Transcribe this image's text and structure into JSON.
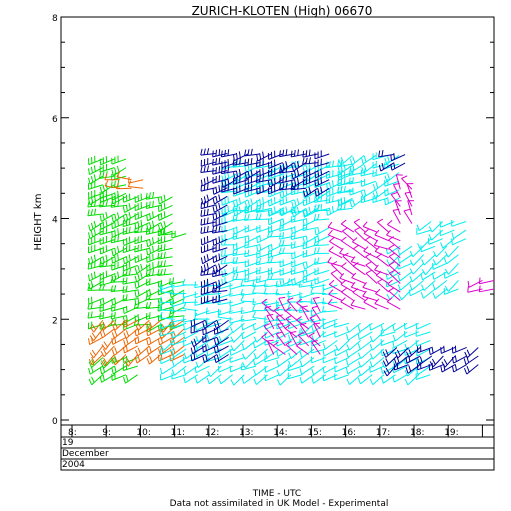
{
  "chart_data": {
    "type": "wind-profile",
    "title": "ZURICH-KLOTEN (High) 06670",
    "ylabel": "HEIGHT km",
    "xlabel": "TIME - UTC",
    "footnote": "Data not assimilated in UK Model - Experimental",
    "ylim": [
      0,
      8
    ],
    "yticks": [
      "0",
      "2",
      "4",
      "6",
      "8"
    ],
    "xlim": [
      7.6,
      20.5
    ],
    "xticks": [
      "8:",
      "9:",
      "10:",
      "11:",
      "12:",
      "13:",
      "14:",
      "15:",
      "16:",
      "17:",
      "18:",
      "19:"
    ],
    "date": {
      "day": "19",
      "month": "December",
      "year": "2004"
    },
    "colors": {
      "green": "#00dd00",
      "orange": "#ee6600",
      "cyan": "#00eeee",
      "navy": "#000099",
      "magenta": "#dd00cc"
    },
    "blocks": [
      {
        "color": "green",
        "t_start": 8.9,
        "t_end": 9.7,
        "h_start": 4.5,
        "h_end": 5.3,
        "dir": 250,
        "barbs": 3
      },
      {
        "color": "green",
        "t_start": 8.9,
        "t_end": 11.2,
        "h_start": 2.9,
        "h_end": 4.5,
        "dir": 250,
        "barbs": 3
      },
      {
        "color": "green",
        "t_start": 8.9,
        "t_end": 11.6,
        "h_start": 1.9,
        "h_end": 2.8,
        "dir": 255,
        "barbs": 2
      },
      {
        "color": "green",
        "t_start": 8.9,
        "t_end": 10.2,
        "h_start": 0.9,
        "h_end": 1.4,
        "dir": 240,
        "barbs": 2
      },
      {
        "color": "green",
        "t_start": 11.0,
        "t_end": 11.4,
        "h_start": 3.7,
        "h_end": 3.8,
        "dir": 260,
        "barbs": 2
      },
      {
        "color": "orange",
        "t_start": 8.9,
        "t_end": 11.3,
        "h_start": 1.3,
        "h_end": 2.0,
        "dir": 230,
        "barbs": 2
      },
      {
        "color": "orange",
        "t_start": 9.4,
        "t_end": 10.3,
        "h_start": 4.6,
        "h_end": 4.9,
        "dir": 270,
        "barbs": 1
      },
      {
        "color": "cyan",
        "t_start": 12.8,
        "t_end": 16.2,
        "h_start": 4.2,
        "h_end": 5.2,
        "dir": 250,
        "barbs": 3
      },
      {
        "color": "cyan",
        "t_start": 12.8,
        "t_end": 15.8,
        "h_start": 2.8,
        "h_end": 4.2,
        "dir": 255,
        "barbs": 2
      },
      {
        "color": "cyan",
        "t_start": 11.0,
        "t_end": 15.8,
        "h_start": 2.0,
        "h_end": 2.8,
        "dir": 265,
        "barbs": 1
      },
      {
        "color": "cyan",
        "t_start": 11.0,
        "t_end": 18.5,
        "h_start": 0.9,
        "h_end": 2.0,
        "dir": 240,
        "barbs": 1
      },
      {
        "color": "cyan",
        "t_start": 16.2,
        "t_end": 17.8,
        "h_start": 4.4,
        "h_end": 5.3,
        "dir": 245,
        "barbs": 2
      },
      {
        "color": "cyan",
        "t_start": 17.6,
        "t_end": 19.6,
        "h_start": 2.6,
        "h_end": 3.6,
        "dir": 235,
        "barbs": 1
      },
      {
        "color": "navy",
        "t_start": 12.2,
        "t_end": 12.6,
        "h_start": 2.4,
        "h_end": 5.3,
        "dir": 250,
        "barbs": 3
      },
      {
        "color": "navy",
        "t_start": 12.8,
        "t_end": 15.7,
        "h_start": 4.6,
        "h_end": 5.3,
        "dir": 250,
        "barbs": 3
      },
      {
        "color": "navy",
        "t_start": 11.9,
        "t_end": 12.9,
        "h_start": 1.3,
        "h_end": 2.1,
        "dir": 245,
        "barbs": 2
      },
      {
        "color": "navy",
        "t_start": 17.5,
        "t_end": 19.9,
        "h_start": 1.1,
        "h_end": 1.6,
        "dir": 235,
        "barbs": 2
      },
      {
        "color": "navy",
        "t_start": 17.4,
        "t_end": 17.9,
        "h_start": 5.1,
        "h_end": 5.3,
        "dir": 250,
        "barbs": 2
      },
      {
        "color": "magenta",
        "t_start": 15.9,
        "t_end": 17.9,
        "h_start": 2.2,
        "h_end": 3.8,
        "dir": 300,
        "barbs": 1
      },
      {
        "color": "magenta",
        "t_start": 13.9,
        "t_end": 15.4,
        "h_start": 1.3,
        "h_end": 2.2,
        "dir": 320,
        "barbs": 1
      },
      {
        "color": "magenta",
        "t_start": 17.6,
        "t_end": 18.2,
        "h_start": 3.9,
        "h_end": 4.7,
        "dir": 330,
        "barbs": 1
      },
      {
        "color": "cyan",
        "t_start": 18.5,
        "t_end": 19.6,
        "h_start": 3.6,
        "h_end": 4.1,
        "dir": 240,
        "barbs": 1
      },
      {
        "color": "magenta",
        "t_start": 20.0,
        "t_end": 20.4,
        "h_start": 2.6,
        "h_end": 2.8,
        "dir": 250,
        "barbs": 1
      }
    ]
  }
}
